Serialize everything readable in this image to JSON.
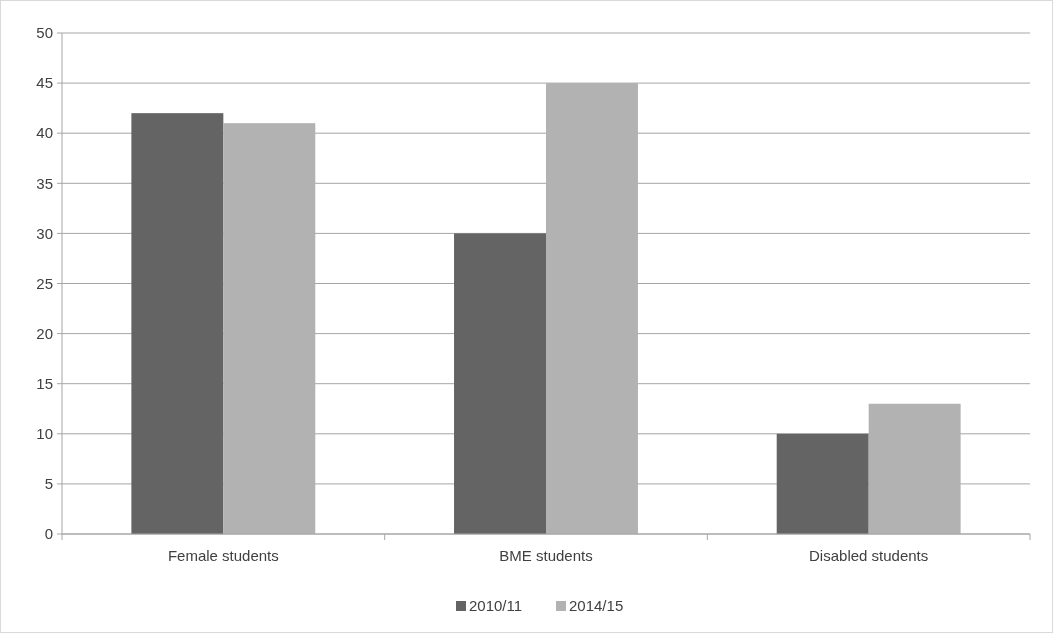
{
  "chart_data": {
    "type": "bar",
    "categories": [
      "Female students",
      "BME students",
      "Disabled students"
    ],
    "series": [
      {
        "name": "2010/11",
        "color": "#646464",
        "values": [
          42,
          30,
          10
        ]
      },
      {
        "name": "2014/15",
        "color": "#b2b2b2",
        "values": [
          41,
          45,
          13
        ]
      }
    ],
    "ylim": [
      0,
      50
    ],
    "yticks": [
      0,
      5,
      10,
      15,
      20,
      25,
      30,
      35,
      40,
      45,
      50
    ],
    "grid": "y",
    "legend": "bottom"
  }
}
